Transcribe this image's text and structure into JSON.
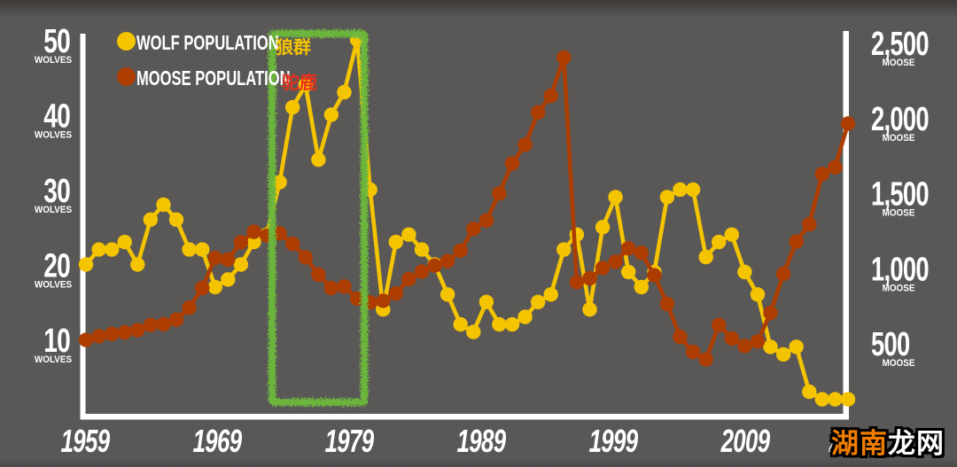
{
  "page": {
    "background_color": "#5a5856"
  },
  "legend": {
    "wolf": {
      "label": "WOLF POPULATION",
      "label_zh": "狼群"
    },
    "moose": {
      "label": "MOOSE POPULATION",
      "label_zh": "驼鹿"
    }
  },
  "watermark": {
    "text_orange": "湖南",
    "text_white": "龙网",
    "orange_color": "#f07d00",
    "white_color": "#ffffff"
  },
  "colors": {
    "background": "#5a5856",
    "wolf_yellow": "#f5c400",
    "moose_rust": "#ad3c00",
    "moose_zh_red": "#e8311c",
    "highlight_green": "#6db93c",
    "axis_white": "#ffffff"
  },
  "chart_data": {
    "type": "line",
    "grid": false,
    "legend_position": "top-left",
    "x": [
      1959,
      1960,
      1961,
      1962,
      1963,
      1964,
      1965,
      1966,
      1967,
      1968,
      1969,
      1970,
      1971,
      1972,
      1973,
      1974,
      1975,
      1976,
      1977,
      1978,
      1979,
      1980,
      1981,
      1982,
      1983,
      1984,
      1985,
      1986,
      1987,
      1988,
      1989,
      1990,
      1991,
      1992,
      1993,
      1994,
      1995,
      1996,
      1997,
      1998,
      1999,
      2000,
      2001,
      2002,
      2003,
      2004,
      2005,
      2006,
      2007,
      2008,
      2009,
      2010,
      2011,
      2012,
      2013,
      2014,
      2015,
      2016,
      2017,
      2018
    ],
    "series": [
      {
        "name": "WOLF POPULATION",
        "axis": "left",
        "color": "#f5c400",
        "values": [
          20,
          22,
          22,
          23,
          20,
          26,
          28,
          26,
          22,
          22,
          17,
          18,
          20,
          23,
          24,
          31,
          41,
          44,
          34,
          40,
          43,
          50,
          30,
          14,
          23,
          24,
          22,
          20,
          16,
          12,
          11,
          15,
          12,
          12,
          13,
          15,
          16,
          22,
          24,
          14,
          25,
          29,
          19,
          17,
          19,
          29,
          30,
          30,
          21,
          23,
          24,
          19,
          16,
          9,
          8,
          9,
          3,
          2,
          2,
          2
        ]
      },
      {
        "name": "MOOSE POPULATION",
        "axis": "right",
        "color": "#ad3c00",
        "values": [
          520,
          545,
          560,
          570,
          585,
          620,
          625,
          655,
          735,
          865,
          1065,
          1055,
          1170,
          1240,
          1215,
          1230,
          1160,
          1070,
          955,
          865,
          875,
          795,
          770,
          780,
          830,
          925,
          975,
          1015,
          1045,
          1115,
          1260,
          1315,
          1495,
          1695,
          1820,
          2035,
          2145,
          2400,
          905,
          930,
          1000,
          1040,
          1130,
          1100,
          950,
          760,
          540,
          440,
          390,
          620,
          530,
          480,
          510,
          700,
          960,
          1175,
          1290,
          1625,
          1670,
          1960
        ]
      }
    ],
    "left_axis": {
      "unit": "WOLVES",
      "tick_labels": [
        "50",
        "40",
        "30",
        "20",
        "10"
      ],
      "tick_values": [
        50,
        40,
        30,
        20,
        10
      ],
      "range": [
        0,
        55
      ]
    },
    "right_axis": {
      "unit": "MOOSE",
      "tick_labels": [
        "2,500",
        "2,000",
        "1,500",
        "1,000",
        "500"
      ],
      "tick_values": [
        2500,
        2000,
        1500,
        1000,
        500
      ],
      "range": [
        0,
        2750
      ]
    },
    "x_tick_labels": [
      "1959",
      "1969",
      "1979",
      "1989",
      "1999",
      "2009",
      "2019"
    ],
    "x_tick_years": [
      1959,
      1969,
      1979,
      1989,
      1999,
      2009,
      2019
    ],
    "highlight_box": {
      "from_year": 1973,
      "to_year": 1980,
      "color": "#6db93c",
      "style": "hand-drawn"
    }
  }
}
